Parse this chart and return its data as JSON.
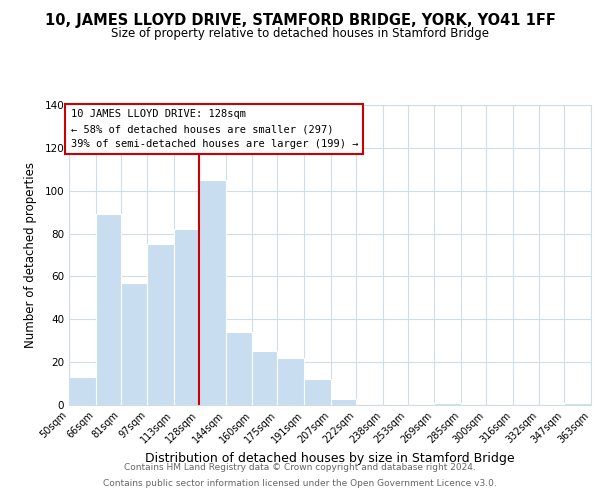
{
  "title1": "10, JAMES LLOYD DRIVE, STAMFORD BRIDGE, YORK, YO41 1FF",
  "title2": "Size of property relative to detached houses in Stamford Bridge",
  "xlabel": "Distribution of detached houses by size in Stamford Bridge",
  "ylabel": "Number of detached properties",
  "footer1": "Contains HM Land Registry data © Crown copyright and database right 2024.",
  "footer2": "Contains public sector information licensed under the Open Government Licence v3.0.",
  "annotation_line1": "10 JAMES LLOYD DRIVE: 128sqm",
  "annotation_line2": "← 58% of detached houses are smaller (297)",
  "annotation_line3": "39% of semi-detached houses are larger (199) →",
  "bar_color": "#c8ddef",
  "bar_edge_color": "#ffffff",
  "ref_line_x": 128,
  "ref_line_color": "#cc0000",
  "bins": [
    50,
    66,
    81,
    97,
    113,
    128,
    144,
    160,
    175,
    191,
    207,
    222,
    238,
    253,
    269,
    285,
    300,
    316,
    332,
    347,
    363
  ],
  "values": [
    13,
    89,
    57,
    75,
    82,
    105,
    34,
    25,
    22,
    12,
    3,
    0,
    0,
    0,
    1,
    0,
    0,
    0,
    0,
    1
  ],
  "tick_labels": [
    "50sqm",
    "66sqm",
    "81sqm",
    "97sqm",
    "113sqm",
    "128sqm",
    "144sqm",
    "160sqm",
    "175sqm",
    "191sqm",
    "207sqm",
    "222sqm",
    "238sqm",
    "253sqm",
    "269sqm",
    "285sqm",
    "300sqm",
    "316sqm",
    "332sqm",
    "347sqm",
    "363sqm"
  ],
  "ylim": [
    0,
    140
  ],
  "yticks": [
    0,
    20,
    40,
    60,
    80,
    100,
    120,
    140
  ],
  "background_color": "#ffffff",
  "grid_color": "#d0dde8",
  "title1_fontsize": 10.5,
  "title2_fontsize": 8.5,
  "ylabel_fontsize": 8.5,
  "xlabel_fontsize": 9,
  "tick_fontsize": 7,
  "ann_fontsize": 7.5,
  "footer_fontsize": 6.5
}
